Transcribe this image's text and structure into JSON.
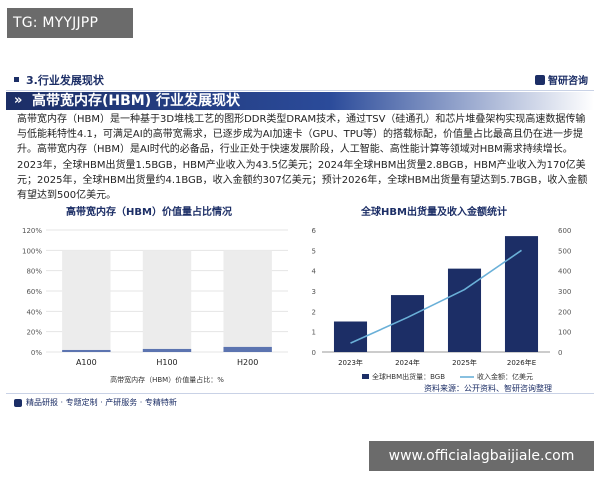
{
  "watermark_top": "TG: MYYJJPP",
  "section": {
    "title": "3.行业发展现状",
    "brand": "智研咨询"
  },
  "banner": {
    "title": "高带宽内存(HBM) 行业发展现状"
  },
  "paragraph": "高带宽内存（HBM）是一种基于3D堆栈工艺的图形DDR类型DRAM技术，通过TSV（硅通孔）和芯片堆叠架构实现高速数据传输与低能耗特性4.1，可满足AI的高带宽需求，已逐步成为AI加速卡（GPU、TPU等）的搭载标配，价值量占比最高且仍在进一步提升。高带宽内存（HBM）是AI时代的必备品，行业正处于快速发展阶段，人工智能、高性能计算等领域对HBM需求持续增长。2023年，全球HBM出货量1.5BGB，HBM产业收入为43.5亿美元；2024年全球HBM出货量2.8BGB，HBM产业收入为170亿美元；2025年，全球HBM出货量约4.1BGB，收入金额约307亿美元；预计2026年，全球HBM出货量有望达到5.7BGB，收入金额有望达到500亿美元。",
  "footer": {
    "text": "精品研报 · 专题定制 · 产研服务 · 专精特新",
    "source": "资料来源：公开资料、智研咨询整理"
  },
  "watermark_bottom": "www.officialagbaijiale.com",
  "colors": {
    "navy": "#1c2e66",
    "bar_gray": "#ececec",
    "bar_blue": "#5c74b0",
    "line": "#6ab0d8"
  },
  "chart_data": [
    {
      "type": "bar",
      "title": "高带宽内存（HBM）价值量占比情况",
      "categories": [
        "A100",
        "H100",
        "H200"
      ],
      "series": [
        {
          "name": "高带宽内存（HBM）价值量占比：%",
          "values": [
            2,
            3,
            5
          ]
        }
      ],
      "total": 100,
      "ylim": [
        0,
        120
      ],
      "yticks": [
        "0%",
        "20%",
        "40%",
        "60%",
        "80%",
        "100%",
        "120%"
      ],
      "legend": "bottom",
      "grid": true
    },
    {
      "type": "bar",
      "title": "全球HBM出货量及收入金额统计",
      "categories": [
        "2023年",
        "2024年",
        "2025年",
        "2026年E"
      ],
      "series": [
        {
          "name": "全球HBM出货量：BGB",
          "type": "bar",
          "axis": "left",
          "values": [
            1.5,
            2.8,
            4.1,
            5.7
          ]
        },
        {
          "name": "收入金额：亿美元",
          "type": "line",
          "axis": "right",
          "values": [
            43.5,
            170,
            307,
            500
          ]
        }
      ],
      "ylim_left": [
        0,
        6
      ],
      "ylim_right": [
        0,
        600
      ],
      "yticks_left": [
        "0",
        "1",
        "2",
        "3",
        "4",
        "5",
        "6"
      ],
      "yticks_right": [
        "0",
        "100",
        "200",
        "300",
        "400",
        "500",
        "600"
      ],
      "legend": "bottom",
      "grid": false
    }
  ]
}
